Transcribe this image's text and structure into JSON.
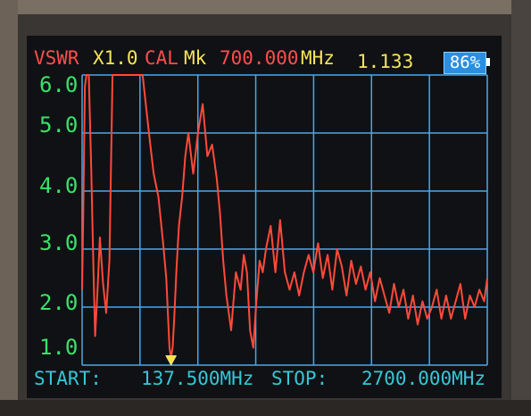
{
  "header": {
    "mode": "VSWR",
    "scale": "X1.0",
    "cal": "CAL",
    "marker_label": "Mk",
    "marker_freq": "700.000",
    "marker_unit": "MHz",
    "marker_vswr": "1.133",
    "battery": "86%"
  },
  "y_axis": {
    "ticks": [
      "6.0",
      "5.0",
      "4.0",
      "3.0",
      "2.0",
      "1.0"
    ]
  },
  "footer": {
    "start_label": "START:",
    "start_value": "137.500MHz",
    "stop_label": "STOP:",
    "stop_value": "2700.000MHz"
  },
  "colors": {
    "trace": "#ff4a3a",
    "grid": "#4aa7ec",
    "axis_text": "#39e26a",
    "footer_text": "#35c6d8",
    "header_red": "#ff4d4d",
    "header_yellow": "#f4e45a",
    "marker": "#ffe23a",
    "screen_bg": "#101114"
  },
  "chart_data": {
    "type": "line",
    "x_range_mhz": [
      137.5,
      2700
    ],
    "ylim": [
      1.0,
      6.0
    ],
    "grid": true,
    "marker": {
      "x": 700.0,
      "y": 1.133
    },
    "series": [
      {
        "x": [
          137.5,
          145,
          155,
          165,
          180,
          195,
          210,
          220,
          235,
          250,
          270,
          290,
          310,
          330,
          350,
          380,
          420,
          470,
          520,
          560,
          590,
          620,
          650,
          670,
          690,
          700,
          710,
          720,
          735,
          750,
          770,
          790,
          810,
          840,
          870,
          900,
          930,
          960,
          990,
          1010,
          1030,
          1050,
          1080,
          1110,
          1140,
          1160,
          1180,
          1200,
          1220,
          1240,
          1260,
          1280,
          1300,
          1330,
          1360,
          1390,
          1420,
          1450,
          1480,
          1510,
          1540,
          1570,
          1600,
          1630,
          1660,
          1690,
          1720,
          1750,
          1780,
          1810,
          1840,
          1870,
          1900,
          1930,
          1960,
          1990,
          2020,
          2050,
          2080,
          2110,
          2140,
          2170,
          2200,
          2230,
          2260,
          2290,
          2320,
          2350,
          2380,
          2410,
          2440,
          2470,
          2500,
          2530,
          2560,
          2590,
          2620,
          2650,
          2680,
          2700
        ],
        "y": [
          2.3,
          3.6,
          5.8,
          6.0,
          6.0,
          4.4,
          2.6,
          1.5,
          2.3,
          3.2,
          2.4,
          1.9,
          2.8,
          6.0,
          6.0,
          6.0,
          6.0,
          6.0,
          6.0,
          5.0,
          4.3,
          3.9,
          3.1,
          2.5,
          1.3,
          1.133,
          1.3,
          1.8,
          2.7,
          3.4,
          3.9,
          4.6,
          5.0,
          4.3,
          5.0,
          5.5,
          4.6,
          4.8,
          4.2,
          3.6,
          2.8,
          2.2,
          1.6,
          2.6,
          2.3,
          2.9,
          2.6,
          1.6,
          1.3,
          2.1,
          2.8,
          2.6,
          3.0,
          3.4,
          2.6,
          3.5,
          2.6,
          2.3,
          2.6,
          2.2,
          2.6,
          2.9,
          2.6,
          3.1,
          2.5,
          2.9,
          2.3,
          3.0,
          2.7,
          2.2,
          2.8,
          2.4,
          2.7,
          2.3,
          2.6,
          2.1,
          2.5,
          2.2,
          1.9,
          2.4,
          2.0,
          2.3,
          1.8,
          2.2,
          1.7,
          2.1,
          1.8,
          2.0,
          2.3,
          1.8,
          2.2,
          1.8,
          2.1,
          2.4,
          1.8,
          2.2,
          2.0,
          2.3,
          2.1,
          2.5
        ]
      }
    ]
  }
}
